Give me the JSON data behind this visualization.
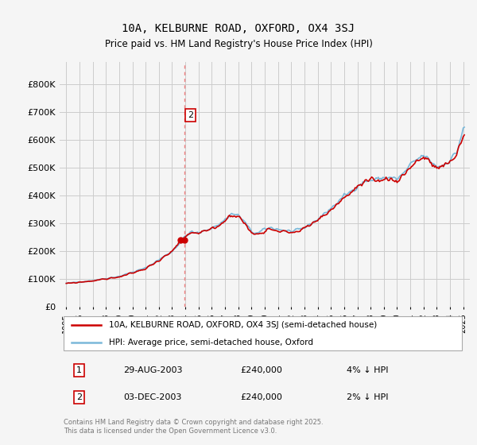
{
  "title": "10A, KELBURNE ROAD, OXFORD, OX4 3SJ",
  "subtitle": "Price paid vs. HM Land Registry's House Price Index (HPI)",
  "ylim": [
    0,
    880000
  ],
  "yticks": [
    0,
    100000,
    200000,
    300000,
    400000,
    500000,
    600000,
    700000,
    800000
  ],
  "ytick_labels": [
    "£0",
    "£100K",
    "£200K",
    "£300K",
    "£400K",
    "£500K",
    "£600K",
    "£700K",
    "£800K"
  ],
  "hpi_color": "#7ab8d9",
  "price_color": "#cc0000",
  "dashed_color": "#f08080",
  "bg_color": "#f5f5f5",
  "grid_color": "#cccccc",
  "legend1": "10A, KELBURNE ROAD, OXFORD, OX4 3SJ (semi-detached house)",
  "legend2": "HPI: Average price, semi-detached house, Oxford",
  "sale1_label": "1",
  "sale1_date": "29-AUG-2003",
  "sale1_price": "£240,000",
  "sale1_pct": "4% ↓ HPI",
  "sale2_label": "2",
  "sale2_date": "03-DEC-2003",
  "sale2_price": "£240,000",
  "sale2_pct": "2% ↓ HPI",
  "sale1_year": 2003.66,
  "sale1_value": 240000,
  "sale2_year": 2003.92,
  "sale2_value": 240000,
  "footer": "Contains HM Land Registry data © Crown copyright and database right 2025.\nThis data is licensed under the Open Government Licence v3.0.",
  "xtick_years": [
    1995,
    1996,
    1997,
    1998,
    1999,
    2000,
    2001,
    2002,
    2003,
    2004,
    2005,
    2006,
    2007,
    2008,
    2009,
    2010,
    2011,
    2012,
    2013,
    2014,
    2015,
    2016,
    2017,
    2018,
    2019,
    2020,
    2021,
    2022,
    2023,
    2024,
    2025
  ]
}
